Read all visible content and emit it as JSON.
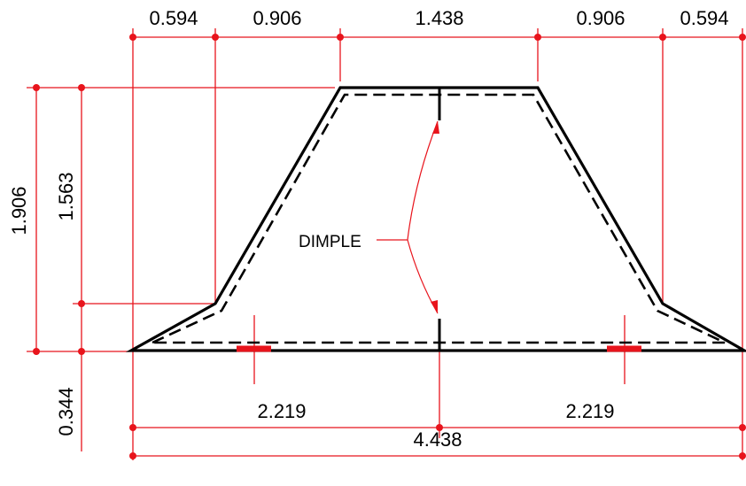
{
  "dimensions": {
    "top": [
      "0.594",
      "0.906",
      "1.438",
      "0.906",
      "0.594"
    ],
    "overall_height": "1.906",
    "slope_height": "1.563",
    "lip_height": "0.344",
    "half_width_left": "2.219",
    "half_width_right": "2.219",
    "total_width": "4.438"
  },
  "callout": {
    "text": "DIMPLE"
  },
  "colors": {
    "dimension": "#e8141c",
    "profile": "#000000"
  }
}
